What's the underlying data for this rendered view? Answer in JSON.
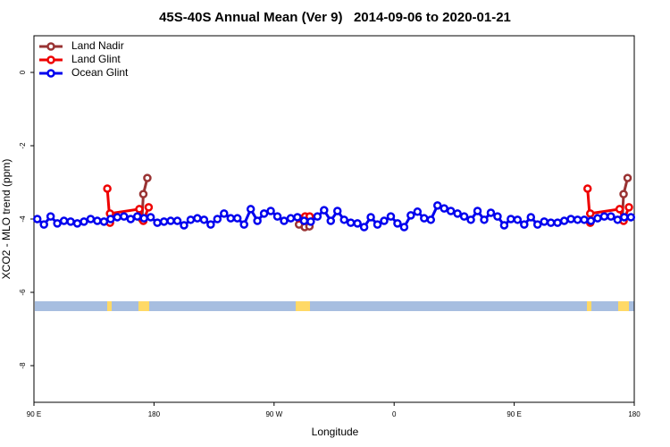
{
  "chart_data": {
    "type": "line",
    "title": "45S-40S Annual Mean (Ver 9)   2014-09-06 to 2020-01-21",
    "x_label": "Longitude",
    "y_label": "XCO2 - MLO trend (ppm)",
    "xlim": [
      90,
      540
    ],
    "ylim": [
      -9,
      1
    ],
    "xticks": [
      {
        "value": 90,
        "label": "90 E"
      },
      180,
      {
        "value": 270,
        "label": "90 W"
      },
      {
        "value": 360,
        "label": "0"
      },
      {
        "value": 450,
        "label": "90 E"
      },
      {
        "value": 540,
        "label": "180"
      }
    ],
    "yticks": [
      0,
      -2,
      -4,
      -6,
      -8
    ],
    "legend": "top-left",
    "series": [
      {
        "name": "Land Nadir",
        "color": "#993333",
        "x": [
          171,
          172,
          175,
          null,
          288.7,
          293,
          296.5,
          null,
          531,
          532,
          535
        ],
        "values": [
          -4.0,
          -3.32,
          -2.88,
          null,
          -4.15,
          -4.22,
          -4.2,
          null,
          -4.0,
          -3.32,
          -2.88
        ]
      },
      {
        "name": "Land Glint",
        "color": "#ee0000",
        "x": [
          145,
          147,
          147,
          169,
          172,
          176,
          null,
          288.7,
          293.3,
          296.7,
          null,
          505,
          507,
          507,
          529,
          532,
          536
        ],
        "values": [
          -3.17,
          -4.1,
          -3.85,
          -3.73,
          -4.05,
          -3.68,
          null,
          -3.98,
          -3.93,
          -3.93,
          null,
          -3.17,
          -4.1,
          -3.85,
          -3.73,
          -4.05,
          -3.68
        ]
      },
      {
        "name": "Ocean Glint",
        "color": "#0000ee",
        "x": [
          92.5,
          97.5,
          102.5,
          107.5,
          112.5,
          117.5,
          122.5,
          127.5,
          132.5,
          137.5,
          142.5,
          147.5,
          152.5,
          157.5,
          162.5,
          167.5,
          172.5,
          177.5,
          182.5,
          187.5,
          192.5,
          197.5,
          202.5,
          207.5,
          212.5,
          217.5,
          222.5,
          227.5,
          232.5,
          237.5,
          242.5,
          247.5,
          252.5,
          257.5,
          262.5,
          267.5,
          272.5,
          277.5,
          282.5,
          287.5,
          292.5,
          297.5,
          302.5,
          307.5,
          312.5,
          317.5,
          322.5,
          327.5,
          332.5,
          337.5,
          342.5,
          347.5,
          352.5,
          357.5,
          362.5,
          367.5,
          372.5,
          377.5,
          382.5,
          387.5,
          392.5,
          397.5,
          402.5,
          407.5,
          412.5,
          417.5,
          422.5,
          427.5,
          432.5,
          437.5,
          442.5,
          447.5,
          452.5,
          457.5,
          462.5,
          467.5,
          472.5,
          477.5,
          482.5,
          487.5,
          492.5,
          497.5,
          502.5,
          507.5,
          512.5,
          517.5,
          522.5,
          527.5,
          532.5,
          537.5
        ],
        "values": [
          -4.0,
          -4.15,
          -3.93,
          -4.12,
          -4.05,
          -4.07,
          -4.12,
          -4.07,
          -4.0,
          -4.05,
          -4.07,
          -4.0,
          -3.95,
          -3.93,
          -4.0,
          -3.93,
          -3.98,
          -3.95,
          -4.1,
          -4.07,
          -4.05,
          -4.05,
          -4.17,
          -4.02,
          -3.98,
          -4.02,
          -4.15,
          -4.0,
          -3.85,
          -3.98,
          -3.98,
          -4.15,
          -3.73,
          -4.05,
          -3.85,
          -3.78,
          -3.93,
          -4.05,
          -3.98,
          -3.95,
          -4.05,
          -4.07,
          -3.93,
          -3.76,
          -4.05,
          -3.78,
          -4.02,
          -4.1,
          -4.12,
          -4.22,
          -3.95,
          -4.15,
          -4.05,
          -3.93,
          -4.12,
          -4.22,
          -3.9,
          -3.8,
          -3.98,
          -4.02,
          -3.63,
          -3.71,
          -3.78,
          -3.85,
          -3.93,
          -4.02,
          -3.78,
          -4.02,
          -3.83,
          -3.93,
          -4.17,
          -4.0,
          -4.02,
          -4.15,
          -3.95,
          -4.15,
          -4.07,
          -4.1,
          -4.1,
          -4.05,
          -4.0,
          -4.02,
          -4.02,
          -4.05,
          -3.98,
          -3.93,
          -3.93,
          -4.02,
          -3.95,
          -3.95
        ]
      }
    ]
  }
}
